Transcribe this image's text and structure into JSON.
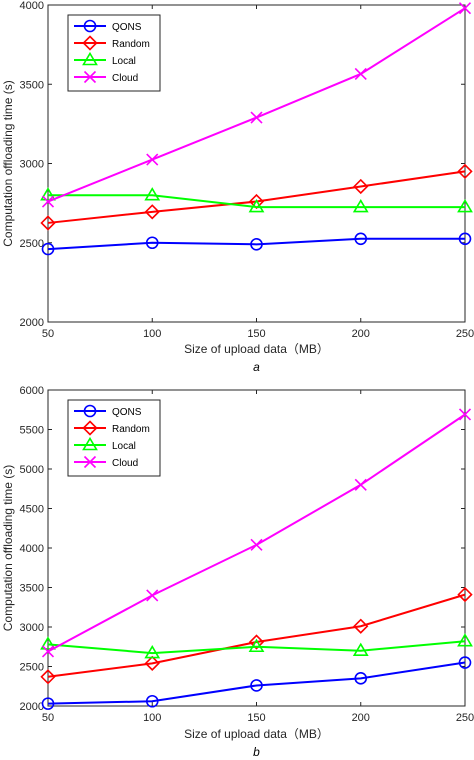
{
  "chart_data": [
    {
      "type": "line",
      "panel_label": "a",
      "xlabel": "Size of upload data（MB）",
      "ylabel": "Computation offloading time (s)",
      "x": [
        50,
        100,
        150,
        200,
        250
      ],
      "xlim": [
        50,
        250
      ],
      "ylim": [
        2000,
        4000
      ],
      "xticks": [
        "50",
        "100",
        "150",
        "200",
        "250"
      ],
      "yticks": [
        "2000",
        "2500",
        "3000",
        "3500",
        "4000"
      ],
      "legend_position": "top-left",
      "grid": false,
      "series": [
        {
          "name": "QONS",
          "marker": "circle",
          "color": "#0000ff",
          "values": [
            2460,
            2500,
            2490,
            2525,
            2525
          ]
        },
        {
          "name": "Random",
          "marker": "diamond",
          "color": "#ff0000",
          "values": [
            2625,
            2695,
            2760,
            2855,
            2950
          ]
        },
        {
          "name": "Local",
          "marker": "triangle",
          "color": "#00ff00",
          "values": [
            2800,
            2800,
            2725,
            2725,
            2725
          ]
        },
        {
          "name": "Cloud",
          "marker": "x",
          "color": "#ff00ff",
          "values": [
            2760,
            3025,
            3290,
            3565,
            3980
          ]
        }
      ]
    },
    {
      "type": "line",
      "panel_label": "b",
      "xlabel": "Size of upload data（MB）",
      "ylabel": "Computation offloading time (s)",
      "x": [
        50,
        100,
        150,
        200,
        250
      ],
      "xlim": [
        50,
        250
      ],
      "ylim": [
        2000,
        6000
      ],
      "xticks": [
        "50",
        "100",
        "150",
        "200",
        "250"
      ],
      "yticks": [
        "2000",
        "2500",
        "3000",
        "3500",
        "4000",
        "4500",
        "5000",
        "5500",
        "6000"
      ],
      "legend_position": "top-left",
      "grid": false,
      "series": [
        {
          "name": "QONS",
          "marker": "circle",
          "color": "#0000ff",
          "values": [
            2030,
            2060,
            2260,
            2350,
            2550
          ]
        },
        {
          "name": "Random",
          "marker": "diamond",
          "color": "#ff0000",
          "values": [
            2370,
            2540,
            2810,
            3010,
            3410
          ]
        },
        {
          "name": "Local",
          "marker": "triangle",
          "color": "#00ff00",
          "values": [
            2780,
            2670,
            2750,
            2700,
            2820
          ]
        },
        {
          "name": "Cloud",
          "marker": "x",
          "color": "#ff00ff",
          "values": [
            2690,
            3400,
            4040,
            4800,
            5690
          ]
        }
      ]
    }
  ]
}
